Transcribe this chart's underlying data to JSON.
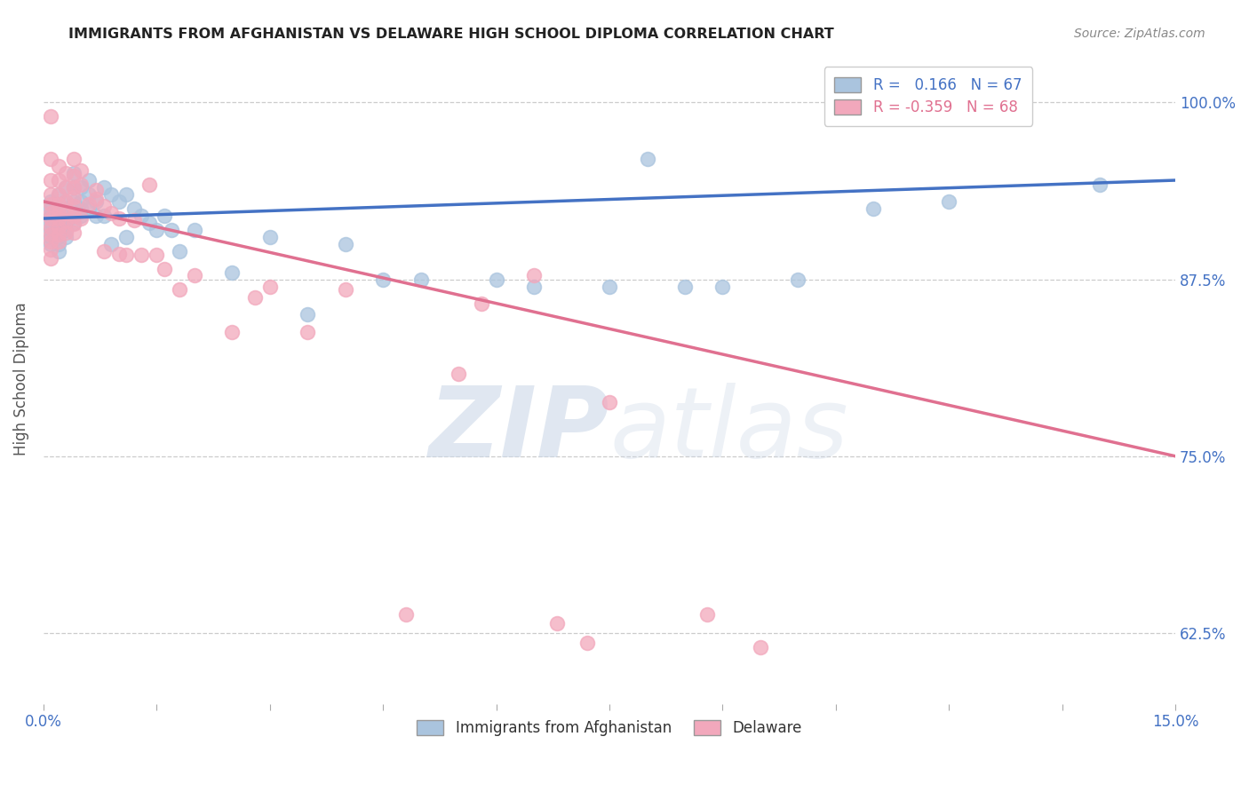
{
  "title": "IMMIGRANTS FROM AFGHANISTAN VS DELAWARE HIGH SCHOOL DIPLOMA CORRELATION CHART",
  "source": "Source: ZipAtlas.com",
  "ylabel": "High School Diploma",
  "yticks": [
    "62.5%",
    "75.0%",
    "87.5%",
    "100.0%"
  ],
  "ytick_vals": [
    0.625,
    0.75,
    0.875,
    1.0
  ],
  "xmin": 0.0,
  "xmax": 0.15,
  "ymin": 0.575,
  "ymax": 1.035,
  "blue_color": "#aac4de",
  "pink_color": "#f2a8bc",
  "blue_line_color": "#4472c4",
  "pink_line_color": "#e07090",
  "blue_R": 0.166,
  "blue_N": 67,
  "pink_R": -0.359,
  "pink_N": 68,
  "blue_line": [
    [
      0.0,
      0.918
    ],
    [
      0.15,
      0.945
    ]
  ],
  "pink_line": [
    [
      0.0,
      0.93
    ],
    [
      0.15,
      0.75
    ]
  ],
  "blue_scatter": [
    [
      0.001,
      0.93
    ],
    [
      0.001,
      0.925
    ],
    [
      0.001,
      0.92
    ],
    [
      0.001,
      0.915
    ],
    [
      0.001,
      0.91
    ],
    [
      0.001,
      0.905
    ],
    [
      0.001,
      0.9
    ],
    [
      0.002,
      0.935
    ],
    [
      0.002,
      0.925
    ],
    [
      0.002,
      0.92
    ],
    [
      0.002,
      0.915
    ],
    [
      0.002,
      0.91
    ],
    [
      0.002,
      0.905
    ],
    [
      0.002,
      0.9
    ],
    [
      0.002,
      0.895
    ],
    [
      0.003,
      0.94
    ],
    [
      0.003,
      0.93
    ],
    [
      0.003,
      0.925
    ],
    [
      0.003,
      0.92
    ],
    [
      0.003,
      0.915
    ],
    [
      0.003,
      0.91
    ],
    [
      0.003,
      0.905
    ],
    [
      0.004,
      0.95
    ],
    [
      0.004,
      0.94
    ],
    [
      0.004,
      0.93
    ],
    [
      0.004,
      0.92
    ],
    [
      0.004,
      0.915
    ],
    [
      0.005,
      0.94
    ],
    [
      0.005,
      0.93
    ],
    [
      0.005,
      0.925
    ],
    [
      0.005,
      0.92
    ],
    [
      0.006,
      0.945
    ],
    [
      0.006,
      0.935
    ],
    [
      0.006,
      0.925
    ],
    [
      0.007,
      0.93
    ],
    [
      0.007,
      0.92
    ],
    [
      0.008,
      0.94
    ],
    [
      0.008,
      0.92
    ],
    [
      0.009,
      0.935
    ],
    [
      0.009,
      0.9
    ],
    [
      0.01,
      0.93
    ],
    [
      0.011,
      0.935
    ],
    [
      0.011,
      0.905
    ],
    [
      0.012,
      0.925
    ],
    [
      0.013,
      0.92
    ],
    [
      0.014,
      0.915
    ],
    [
      0.015,
      0.91
    ],
    [
      0.016,
      0.92
    ],
    [
      0.017,
      0.91
    ],
    [
      0.018,
      0.895
    ],
    [
      0.02,
      0.91
    ],
    [
      0.025,
      0.88
    ],
    [
      0.03,
      0.905
    ],
    [
      0.035,
      0.85
    ],
    [
      0.04,
      0.9
    ],
    [
      0.045,
      0.875
    ],
    [
      0.05,
      0.875
    ],
    [
      0.06,
      0.875
    ],
    [
      0.065,
      0.87
    ],
    [
      0.075,
      0.87
    ],
    [
      0.08,
      0.96
    ],
    [
      0.085,
      0.87
    ],
    [
      0.09,
      0.87
    ],
    [
      0.1,
      0.875
    ],
    [
      0.11,
      0.925
    ],
    [
      0.12,
      0.93
    ],
    [
      0.14,
      0.942
    ]
  ],
  "pink_scatter": [
    [
      0.001,
      0.99
    ],
    [
      0.001,
      0.96
    ],
    [
      0.001,
      0.945
    ],
    [
      0.001,
      0.935
    ],
    [
      0.001,
      0.928
    ],
    [
      0.001,
      0.922
    ],
    [
      0.001,
      0.918
    ],
    [
      0.001,
      0.912
    ],
    [
      0.001,
      0.907
    ],
    [
      0.001,
      0.902
    ],
    [
      0.001,
      0.896
    ],
    [
      0.001,
      0.89
    ],
    [
      0.002,
      0.955
    ],
    [
      0.002,
      0.945
    ],
    [
      0.002,
      0.935
    ],
    [
      0.002,
      0.928
    ],
    [
      0.002,
      0.922
    ],
    [
      0.002,
      0.918
    ],
    [
      0.002,
      0.912
    ],
    [
      0.002,
      0.907
    ],
    [
      0.002,
      0.902
    ],
    [
      0.003,
      0.95
    ],
    [
      0.003,
      0.94
    ],
    [
      0.003,
      0.93
    ],
    [
      0.003,
      0.922
    ],
    [
      0.003,
      0.916
    ],
    [
      0.003,
      0.908
    ],
    [
      0.004,
      0.96
    ],
    [
      0.004,
      0.948
    ],
    [
      0.004,
      0.94
    ],
    [
      0.004,
      0.933
    ],
    [
      0.004,
      0.927
    ],
    [
      0.004,
      0.92
    ],
    [
      0.004,
      0.914
    ],
    [
      0.004,
      0.908
    ],
    [
      0.005,
      0.952
    ],
    [
      0.005,
      0.942
    ],
    [
      0.005,
      0.918
    ],
    [
      0.006,
      0.928
    ],
    [
      0.007,
      0.938
    ],
    [
      0.007,
      0.932
    ],
    [
      0.008,
      0.927
    ],
    [
      0.008,
      0.895
    ],
    [
      0.009,
      0.922
    ],
    [
      0.01,
      0.918
    ],
    [
      0.01,
      0.893
    ],
    [
      0.011,
      0.892
    ],
    [
      0.012,
      0.917
    ],
    [
      0.013,
      0.892
    ],
    [
      0.014,
      0.942
    ],
    [
      0.015,
      0.892
    ],
    [
      0.016,
      0.882
    ],
    [
      0.018,
      0.868
    ],
    [
      0.02,
      0.878
    ],
    [
      0.025,
      0.838
    ],
    [
      0.028,
      0.862
    ],
    [
      0.03,
      0.87
    ],
    [
      0.035,
      0.838
    ],
    [
      0.04,
      0.868
    ],
    [
      0.048,
      0.638
    ],
    [
      0.055,
      0.808
    ],
    [
      0.058,
      0.858
    ],
    [
      0.065,
      0.878
    ],
    [
      0.068,
      0.632
    ],
    [
      0.072,
      0.618
    ],
    [
      0.075,
      0.788
    ],
    [
      0.088,
      0.638
    ],
    [
      0.095,
      0.615
    ]
  ]
}
